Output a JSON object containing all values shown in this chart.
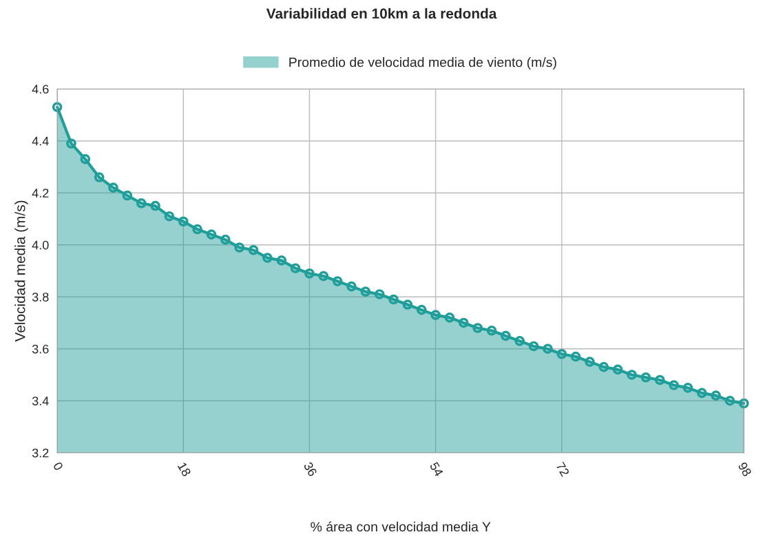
{
  "chart_data": {
    "type": "area",
    "title": "Variabilidad en 10km a la redonda",
    "xlabel": "% área con velocidad media Y",
    "ylabel": "Velocidad media (m/s)",
    "x": [
      0,
      2,
      4,
      6,
      8,
      10,
      12,
      14,
      16,
      18,
      20,
      22,
      24,
      26,
      28,
      30,
      32,
      34,
      36,
      38,
      40,
      42,
      44,
      46,
      48,
      50,
      52,
      54,
      56,
      58,
      60,
      62,
      64,
      66,
      68,
      70,
      72,
      74,
      76,
      78,
      80,
      82,
      84,
      86,
      88,
      90,
      92,
      94,
      96,
      98
    ],
    "series": [
      {
        "name": "Promedio de velocidad media de viento (m/s)",
        "color": "#1f9e9a",
        "values": [
          4.53,
          4.39,
          4.33,
          4.26,
          4.22,
          4.19,
          4.16,
          4.15,
          4.11,
          4.09,
          4.06,
          4.04,
          4.02,
          3.99,
          3.98,
          3.95,
          3.94,
          3.91,
          3.89,
          3.88,
          3.86,
          3.84,
          3.82,
          3.81,
          3.79,
          3.77,
          3.75,
          3.73,
          3.72,
          3.7,
          3.68,
          3.67,
          3.65,
          3.63,
          3.61,
          3.6,
          3.58,
          3.57,
          3.55,
          3.53,
          3.52,
          3.5,
          3.49,
          3.48,
          3.46,
          3.45,
          3.43,
          3.42,
          3.4,
          3.39
        ]
      }
    ],
    "xlim": [
      0,
      98
    ],
    "xticks": [
      0,
      18,
      36,
      54,
      72,
      98
    ],
    "ylim": [
      3.2,
      4.6
    ],
    "yticks": [
      {
        "value": 3.2,
        "label": "3.2"
      },
      {
        "value": 3.4,
        "label": "3.4"
      },
      {
        "value": 3.6,
        "label": "3.6"
      },
      {
        "value": 3.8,
        "label": "3.8"
      },
      {
        "value": 4.0,
        "label": "4.0"
      },
      {
        "value": 4.2,
        "label": "4.2"
      },
      {
        "value": 4.4,
        "label": "4.4"
      },
      {
        "value": 4.6,
        "label": "4.6"
      }
    ],
    "grid": true,
    "legend": "top",
    "marker": "circle",
    "line_style": "solid"
  }
}
